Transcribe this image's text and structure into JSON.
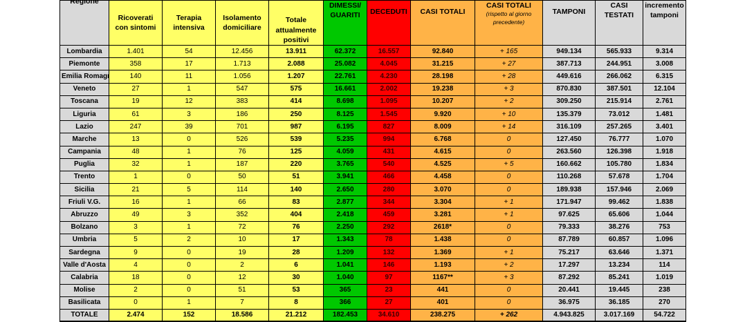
{
  "headers": {
    "regione": "Regione",
    "ricoverati": "Ricoverati con sintomi",
    "terapia": "Terapia intensiva",
    "isolamento": "Isolamento domiciliare",
    "totale_positivi": "Totale attualmente positivi",
    "dimessi": "DIMESSI/ GUARITI",
    "deceduti": "DECEDUTI",
    "casi_totali": "CASI TOTALI",
    "casi_totali_delta": "CASI TOTALI",
    "casi_totali_delta_sub": "(rispetto al giorno precedente)",
    "tamponi": "TAMPONI",
    "casi_testati": "CASI TESTATI",
    "incremento": "incremento tamponi"
  },
  "rows": [
    {
      "regione": "Lombardia",
      "ricoverati": "1.401",
      "terapia": "54",
      "isolamento": "12.456",
      "totale_positivi": "13.911",
      "dimessi": "62.372",
      "deceduti": "16.557",
      "casi_totali": "92.840",
      "delta": "+ 165",
      "tamponi": "949.134",
      "casi_testati": "565.933",
      "incremento": "9.314"
    },
    {
      "regione": "Piemonte",
      "ricoverati": "358",
      "terapia": "17",
      "isolamento": "1.713",
      "totale_positivi": "2.088",
      "dimessi": "25.082",
      "deceduti": "4.045",
      "casi_totali": "31.215",
      "delta": "+ 27",
      "tamponi": "387.713",
      "casi_testati": "244.951",
      "incremento": "3.008"
    },
    {
      "regione": "Emilia Romagna",
      "ricoverati": "140",
      "terapia": "11",
      "isolamento": "1.056",
      "totale_positivi": "1.207",
      "dimessi": "22.761",
      "deceduti": "4.230",
      "casi_totali": "28.198",
      "delta": "+ 28",
      "tamponi": "449.616",
      "casi_testati": "266.062",
      "incremento": "6.315"
    },
    {
      "regione": "Veneto",
      "ricoverati": "27",
      "terapia": "1",
      "isolamento": "547",
      "totale_positivi": "575",
      "dimessi": "16.661",
      "deceduti": "2.002",
      "casi_totali": "19.238",
      "delta": "+ 3",
      "tamponi": "870.830",
      "casi_testati": "387.501",
      "incremento": "12.104"
    },
    {
      "regione": "Toscana",
      "ricoverati": "19",
      "terapia": "12",
      "isolamento": "383",
      "totale_positivi": "414",
      "dimessi": "8.698",
      "deceduti": "1.095",
      "casi_totali": "10.207",
      "delta": "+ 2",
      "tamponi": "309.250",
      "casi_testati": "215.914",
      "incremento": "2.761"
    },
    {
      "regione": "Liguria",
      "ricoverati": "61",
      "terapia": "3",
      "isolamento": "186",
      "totale_positivi": "250",
      "dimessi": "8.125",
      "deceduti": "1.545",
      "casi_totali": "9.920",
      "delta": "+ 10",
      "tamponi": "135.379",
      "casi_testati": "73.012",
      "incremento": "1.481"
    },
    {
      "regione": "Lazio",
      "ricoverati": "247",
      "terapia": "39",
      "isolamento": "701",
      "totale_positivi": "987",
      "dimessi": "6.195",
      "deceduti": "827",
      "casi_totali": "8.009",
      "delta": "+ 14",
      "tamponi": "316.109",
      "casi_testati": "257.265",
      "incremento": "3.401"
    },
    {
      "regione": "Marche",
      "ricoverati": "13",
      "terapia": "0",
      "isolamento": "526",
      "totale_positivi": "539",
      "dimessi": "5.235",
      "deceduti": "994",
      "casi_totali": "6.768",
      "delta": "0",
      "tamponi": "127.450",
      "casi_testati": "76.777",
      "incremento": "1.070"
    },
    {
      "regione": "Campania",
      "ricoverati": "48",
      "terapia": "1",
      "isolamento": "76",
      "totale_positivi": "125",
      "dimessi": "4.059",
      "deceduti": "431",
      "casi_totali": "4.615",
      "delta": "0",
      "tamponi": "263.560",
      "casi_testati": "126.398",
      "incremento": "1.918"
    },
    {
      "regione": "Puglia",
      "ricoverati": "32",
      "terapia": "1",
      "isolamento": "187",
      "totale_positivi": "220",
      "dimessi": "3.765",
      "deceduti": "540",
      "casi_totali": "4.525",
      "delta": "+ 5",
      "tamponi": "160.662",
      "casi_testati": "105.780",
      "incremento": "1.834"
    },
    {
      "regione": "Trento",
      "ricoverati": "1",
      "terapia": "0",
      "isolamento": "50",
      "totale_positivi": "51",
      "dimessi": "3.941",
      "deceduti": "466",
      "casi_totali": "4.458",
      "delta": "0",
      "tamponi": "110.268",
      "casi_testati": "57.678",
      "incremento": "1.704"
    },
    {
      "regione": "Sicilia",
      "ricoverati": "21",
      "terapia": "5",
      "isolamento": "114",
      "totale_positivi": "140",
      "dimessi": "2.650",
      "deceduti": "280",
      "casi_totali": "3.070",
      "delta": "0",
      "tamponi": "189.938",
      "casi_testati": "157.946",
      "incremento": "2.069"
    },
    {
      "regione": "Friuli V.G.",
      "ricoverati": "16",
      "terapia": "1",
      "isolamento": "66",
      "totale_positivi": "83",
      "dimessi": "2.877",
      "deceduti": "344",
      "casi_totali": "3.304",
      "delta": "+ 1",
      "tamponi": "171.947",
      "casi_testati": "99.462",
      "incremento": "1.838"
    },
    {
      "regione": "Abruzzo",
      "ricoverati": "49",
      "terapia": "3",
      "isolamento": "352",
      "totale_positivi": "404",
      "dimessi": "2.418",
      "deceduti": "459",
      "casi_totali": "3.281",
      "delta": "+ 1",
      "tamponi": "97.625",
      "casi_testati": "65.606",
      "incremento": "1.044"
    },
    {
      "regione": "Bolzano",
      "ricoverati": "3",
      "terapia": "1",
      "isolamento": "72",
      "totale_positivi": "76",
      "dimessi": "2.250",
      "deceduti": "292",
      "casi_totali": "2618*",
      "delta": "0",
      "tamponi": "79.333",
      "casi_testati": "38.276",
      "incremento": "753"
    },
    {
      "regione": "Umbria",
      "ricoverati": "5",
      "terapia": "2",
      "isolamento": "10",
      "totale_positivi": "17",
      "dimessi": "1.343",
      "deceduti": "78",
      "casi_totali": "1.438",
      "delta": "0",
      "tamponi": "87.789",
      "casi_testati": "60.857",
      "incremento": "1.096"
    },
    {
      "regione": "Sardegna",
      "ricoverati": "9",
      "terapia": "0",
      "isolamento": "19",
      "totale_positivi": "28",
      "dimessi": "1.209",
      "deceduti": "132",
      "casi_totali": "1.369",
      "delta": "+ 1",
      "tamponi": "75.217",
      "casi_testati": "63.646",
      "incremento": "1.371"
    },
    {
      "regione": "Valle d'Aosta",
      "ricoverati": "4",
      "terapia": "0",
      "isolamento": "2",
      "totale_positivi": "6",
      "dimessi": "1.041",
      "deceduti": "146",
      "casi_totali": "1.193",
      "delta": "+ 2",
      "tamponi": "17.297",
      "casi_testati": "13.234",
      "incremento": "114"
    },
    {
      "regione": "Calabria",
      "ricoverati": "18",
      "terapia": "0",
      "isolamento": "12",
      "totale_positivi": "30",
      "dimessi": "1.040",
      "deceduti": "97",
      "casi_totali": "1167**",
      "delta": "+ 3",
      "tamponi": "87.292",
      "casi_testati": "85.241",
      "incremento": "1.019"
    },
    {
      "regione": "Molise",
      "ricoverati": "2",
      "terapia": "0",
      "isolamento": "51",
      "totale_positivi": "53",
      "dimessi": "365",
      "deceduti": "23",
      "casi_totali": "441",
      "delta": "0",
      "tamponi": "20.441",
      "casi_testati": "19.445",
      "incremento": "238"
    },
    {
      "regione": "Basilicata",
      "ricoverati": "0",
      "terapia": "1",
      "isolamento": "7",
      "totale_positivi": "8",
      "dimessi": "366",
      "deceduti": "27",
      "casi_totali": "401",
      "delta": "0",
      "tamponi": "36.975",
      "casi_testati": "36.185",
      "incremento": "270"
    }
  ],
  "totale": {
    "regione": "TOTALE",
    "ricoverati": "2.474",
    "terapia": "152",
    "isolamento": "18.586",
    "totale_positivi": "21.212",
    "dimessi": "182.453",
    "deceduti": "34.610",
    "casi_totali": "238.275",
    "delta": "+ 262",
    "tamponi": "4.943.825",
    "casi_testati": "3.017.169",
    "incremento": "54.722"
  },
  "colors": {
    "yellow": "#ffff66",
    "green": "#00c800",
    "red": "#ff0000",
    "orange": "#ffb347",
    "gray": "#d9d9d9"
  }
}
